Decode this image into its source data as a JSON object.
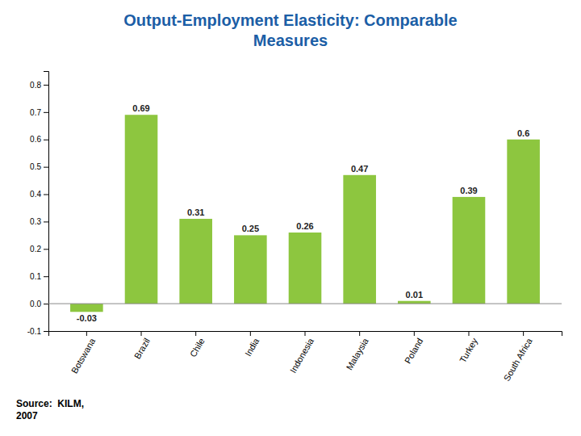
{
  "chart_data": {
    "type": "bar",
    "title": "Output-Employment Elasticity: Comparable\nMeasures",
    "categories": [
      "Botswana",
      "Brazil",
      "Chile",
      "India",
      "Indonesia",
      "Malaysia",
      "Poland",
      "Turkey",
      "South Africa"
    ],
    "values": [
      -0.03,
      0.69,
      0.31,
      0.25,
      0.26,
      0.47,
      0.01,
      0.39,
      0.6
    ],
    "color": "#8DC63F",
    "ylim": [
      -0.1,
      0.85
    ],
    "yticks": [
      -0.1,
      {
        "value": 0.0,
        "label": "0.0"
      },
      0.1,
      0.2,
      0.3,
      0.4,
      0.5,
      0.6,
      0.7,
      0.8
    ],
    "data_labels": true,
    "grid": false,
    "annotations": [
      "Source:  KILM,\n2007"
    ]
  }
}
